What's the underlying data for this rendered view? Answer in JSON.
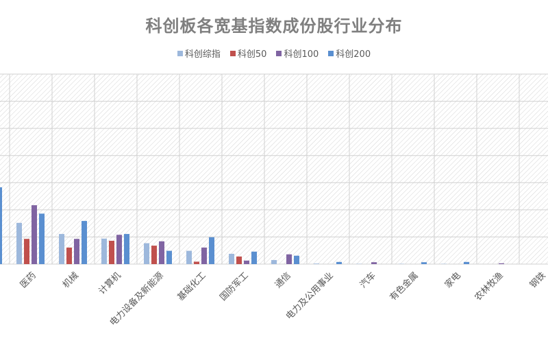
{
  "chart_data": {
    "type": "bar",
    "title": "科创板各宽基指数成份股行业分布",
    "xlabel": "",
    "ylabel": "",
    "ylim": [
      0,
      7
    ],
    "grid": true,
    "legend_position": "top",
    "categories": [
      "",
      "医药",
      "机械",
      "计算机",
      "电力设备及新能源",
      "基础化工",
      "国防军工",
      "通信",
      "电力及公用事业",
      "汽车",
      "有色金属",
      "家电",
      "农林牧渔",
      "钢铁"
    ],
    "series": [
      {
        "name": "科创综指",
        "color": "#9db8dc",
        "values": [
          null,
          1.52,
          1.11,
          0.94,
          0.77,
          0.49,
          0.38,
          0.15,
          0.02,
          0.01,
          0.01,
          0.01,
          0.0,
          0.0
        ]
      },
      {
        "name": "科创50",
        "color": "#c0504d",
        "values": [
          null,
          0.93,
          0.61,
          0.86,
          0.68,
          0.09,
          0.28,
          0.0,
          0.0,
          0.0,
          0.0,
          0.0,
          0.0,
          0.0
        ]
      },
      {
        "name": "科创100",
        "color": "#8064a2",
        "values": [
          null,
          2.17,
          0.93,
          1.08,
          0.84,
          0.61,
          0.13,
          0.36,
          0.0,
          0.07,
          0.0,
          0.0,
          0.03,
          0.0
        ]
      },
      {
        "name": "科创200",
        "color": "#5a8fd0",
        "values": [
          2.83,
          1.86,
          1.59,
          1.11,
          0.49,
          0.99,
          0.46,
          0.31,
          0.08,
          0.0,
          0.07,
          0.08,
          0.0,
          0.0
        ]
      }
    ]
  }
}
